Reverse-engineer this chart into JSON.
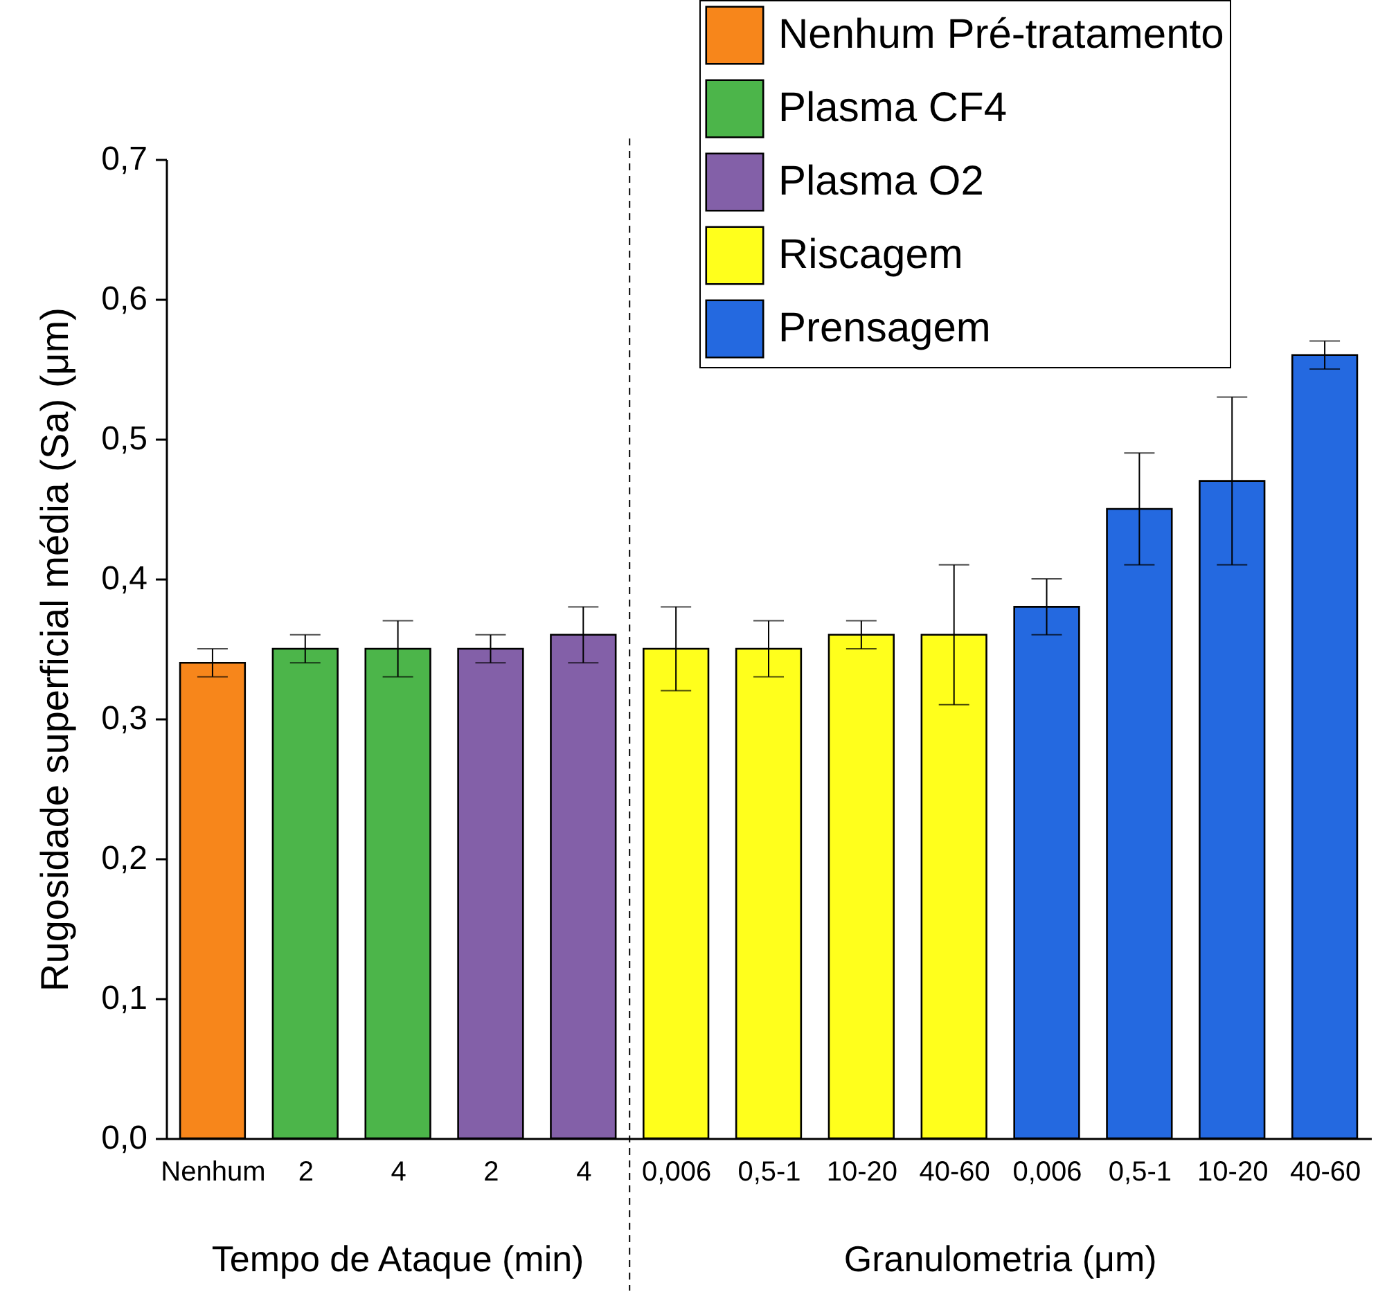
{
  "chart_data": {
    "type": "bar",
    "ylabel": "Rugosidade superficial média (Sa) (μm)",
    "categories": [
      "Nenhum",
      "2",
      "4",
      "2",
      "4",
      "0,006",
      "0,5-1",
      "10-20",
      "40-60",
      "0,006",
      "0,5-1",
      "10-20",
      "40-60"
    ],
    "series": [
      {
        "name": "Nenhum Pré-tratamento",
        "color": "#f7861b",
        "values": [
          0.34,
          null,
          null,
          null,
          null,
          null,
          null,
          null,
          null,
          null,
          null,
          null,
          null
        ],
        "errors": [
          0.01,
          null,
          null,
          null,
          null,
          null,
          null,
          null,
          null,
          null,
          null,
          null,
          null
        ]
      },
      {
        "name": "Plasma CF4",
        "color": "#4cb54a",
        "values": [
          null,
          0.35,
          0.35,
          null,
          null,
          null,
          null,
          null,
          null,
          null,
          null,
          null,
          null
        ],
        "errors": [
          null,
          0.01,
          0.02,
          null,
          null,
          null,
          null,
          null,
          null,
          null,
          null,
          null,
          null
        ]
      },
      {
        "name": "Plasma O2",
        "color": "#8360a8",
        "values": [
          null,
          null,
          null,
          0.35,
          0.36,
          null,
          null,
          null,
          null,
          null,
          null,
          null,
          null
        ],
        "errors": [
          null,
          null,
          null,
          0.01,
          0.02,
          null,
          null,
          null,
          null,
          null,
          null,
          null,
          null
        ]
      },
      {
        "name": "Riscagem",
        "color": "#ffff1c",
        "values": [
          null,
          null,
          null,
          null,
          null,
          0.35,
          0.35,
          0.36,
          0.36,
          null,
          null,
          null,
          null
        ],
        "errors": [
          null,
          null,
          null,
          null,
          null,
          0.03,
          0.02,
          0.01,
          0.05,
          null,
          null,
          null,
          null
        ]
      },
      {
        "name": "Prensagem",
        "color": "#2469e0",
        "values": [
          null,
          null,
          null,
          null,
          null,
          null,
          null,
          null,
          null,
          0.38,
          0.45,
          0.47,
          0.56
        ],
        "errors": [
          null,
          null,
          null,
          null,
          null,
          null,
          null,
          null,
          null,
          0.02,
          0.04,
          0.06,
          0.01
        ]
      }
    ],
    "ylim": [
      0,
      0.7
    ],
    "yticks": [
      {
        "value": 0,
        "label": "0,0"
      },
      {
        "value": 0.1,
        "label": "0,1"
      },
      {
        "value": 0.2,
        "label": "0,2"
      },
      {
        "value": 0.3,
        "label": "0,3"
      },
      {
        "value": 0.4,
        "label": "0,4"
      },
      {
        "value": 0.5,
        "label": "0,5"
      },
      {
        "value": 0.6,
        "label": "0,6"
      },
      {
        "value": 0.7,
        "label": "0,7"
      }
    ],
    "annotations": [
      "Tempo de Ataque (min)",
      "Granulometria (μm)"
    ],
    "legend": "top right",
    "grid": false
  }
}
